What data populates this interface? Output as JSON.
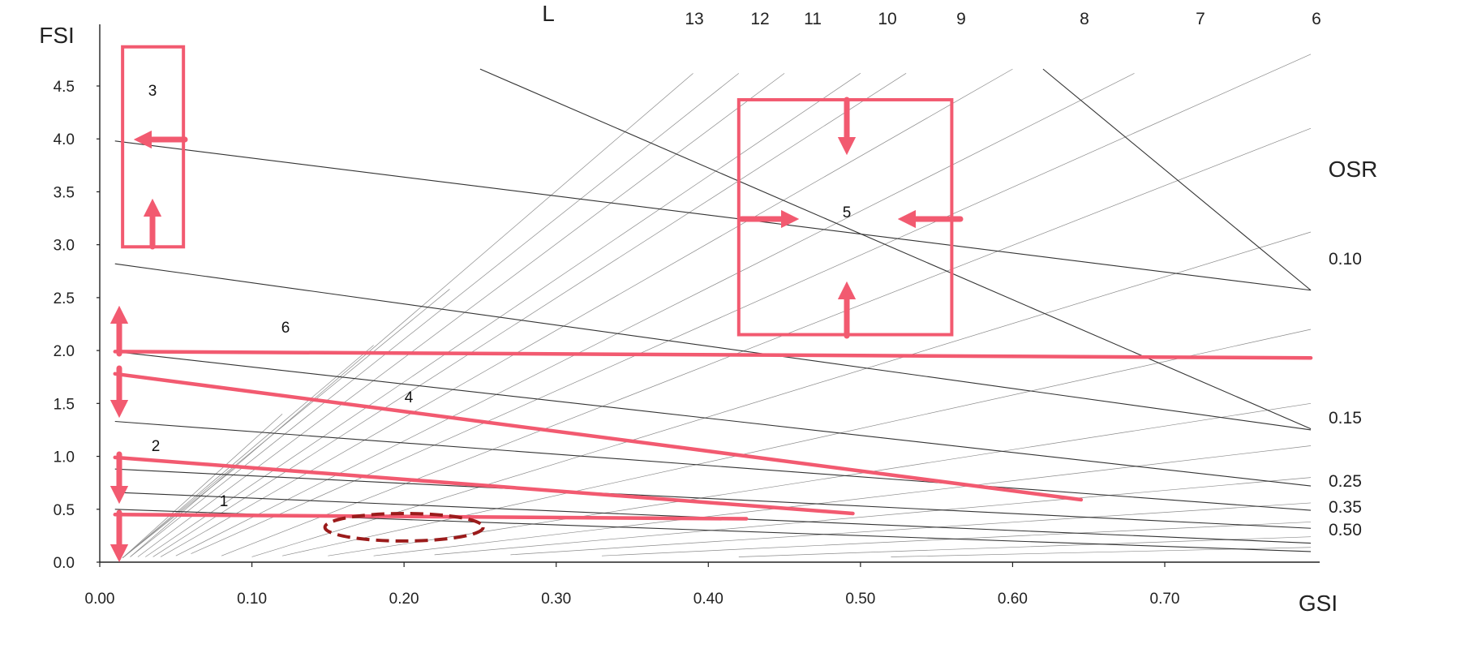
{
  "chart_data": {
    "type": "line",
    "title": "",
    "xlabel": "GSI",
    "ylabel": "FSI",
    "xlim": [
      0,
      0.8
    ],
    "ylim": [
      0,
      4.8
    ],
    "x_ticks": [
      {
        "value": 0.0,
        "label": "0.00"
      },
      {
        "value": 0.1,
        "label": "0.10"
      },
      {
        "value": 0.2,
        "label": "0.20"
      },
      {
        "value": 0.3,
        "label": "0.30"
      },
      {
        "value": 0.4,
        "label": "0.40"
      },
      {
        "value": 0.5,
        "label": "0.50"
      },
      {
        "value": 0.6,
        "label": "0.60"
      },
      {
        "value": 0.7,
        "label": "0.70"
      }
    ],
    "y_ticks": [
      {
        "value": 0.0,
        "label": "0.0"
      },
      {
        "value": 0.5,
        "label": "0.5"
      },
      {
        "value": 1.0,
        "label": "1.0"
      },
      {
        "value": 1.5,
        "label": "1.5"
      },
      {
        "value": 2.0,
        "label": "2.0"
      },
      {
        "value": 2.5,
        "label": "2.5"
      },
      {
        "value": 3.0,
        "label": "3.0"
      },
      {
        "value": 3.5,
        "label": "3.5"
      },
      {
        "value": 4.0,
        "label": "4.0"
      },
      {
        "value": 4.5,
        "label": "4.5"
      }
    ],
    "l_lines": {
      "title": "L",
      "lines": [
        {
          "label": "13",
          "value": 13
        },
        {
          "label": "12",
          "value": 12
        },
        {
          "label": "11",
          "value": 11
        },
        {
          "label": "10",
          "value": 10
        },
        {
          "label": "9",
          "value": 9
        },
        {
          "label": "8",
          "value": 8
        },
        {
          "label": "7",
          "value": 7
        },
        {
          "label": "6",
          "value": 6
        }
      ]
    },
    "osr_lines": {
      "title": "OSR",
      "lines": [
        {
          "label": "0.10",
          "points": [
            [
              0.01,
              3.98
            ],
            [
              0.796,
              2.57
            ]
          ]
        },
        {
          "label": "0.15",
          "points": [
            [
              0.01,
              2.82
            ],
            [
              0.796,
              1.25
            ]
          ]
        },
        {
          "label": "0.25",
          "points": [
            [
              0.01,
              1.99
            ],
            [
              0.796,
              0.72
            ]
          ]
        },
        {
          "label": "0.35",
          "points": [
            [
              0.01,
              1.33
            ],
            [
              0.796,
              0.49
            ]
          ]
        },
        {
          "label": "0.50",
          "points": [
            [
              0.01,
              0.88
            ],
            [
              0.796,
              0.32
            ]
          ]
        },
        {
          "label": "",
          "points": [
            [
              0.01,
              0.66
            ],
            [
              0.796,
              0.18
            ]
          ]
        },
        {
          "label": "",
          "points": [
            [
              0.01,
              0.5
            ],
            [
              0.796,
              0.1
            ]
          ]
        }
      ]
    },
    "other_lines": [
      {
        "points": [
          [
            0.25,
            4.66
          ],
          [
            0.796,
            1.26
          ]
        ]
      },
      {
        "points": [
          [
            0.62,
            4.66
          ],
          [
            0.796,
            2.57
          ]
        ]
      }
    ],
    "highlight_lines": [
      {
        "label": "6",
        "points": [
          [
            0.01,
            1.99
          ],
          [
            0.796,
            1.93
          ]
        ]
      },
      {
        "label": "4",
        "points": [
          [
            0.01,
            1.78
          ],
          [
            0.645,
            0.59
          ]
        ]
      },
      {
        "label": "2",
        "points": [
          [
            0.01,
            0.99
          ],
          [
            0.495,
            0.46
          ]
        ]
      },
      {
        "label": "1",
        "points": [
          [
            0.01,
            0.45
          ],
          [
            0.425,
            0.41
          ]
        ]
      }
    ],
    "regions": [
      {
        "label": "3",
        "x": [
          0.015,
          0.055
        ],
        "y": [
          2.98,
          4.87
        ]
      },
      {
        "label": "5",
        "x": [
          0.42,
          0.56
        ],
        "y": [
          2.15,
          4.37
        ]
      }
    ],
    "ellipse": {
      "center": [
        0.2,
        0.33
      ],
      "rx": 0.052,
      "ry": 0.13
    },
    "colors": {
      "highlight": "#f25a70",
      "ellipse": "#9b1b1b",
      "grid": "#7a7a7a",
      "axis": "#222222"
    }
  }
}
